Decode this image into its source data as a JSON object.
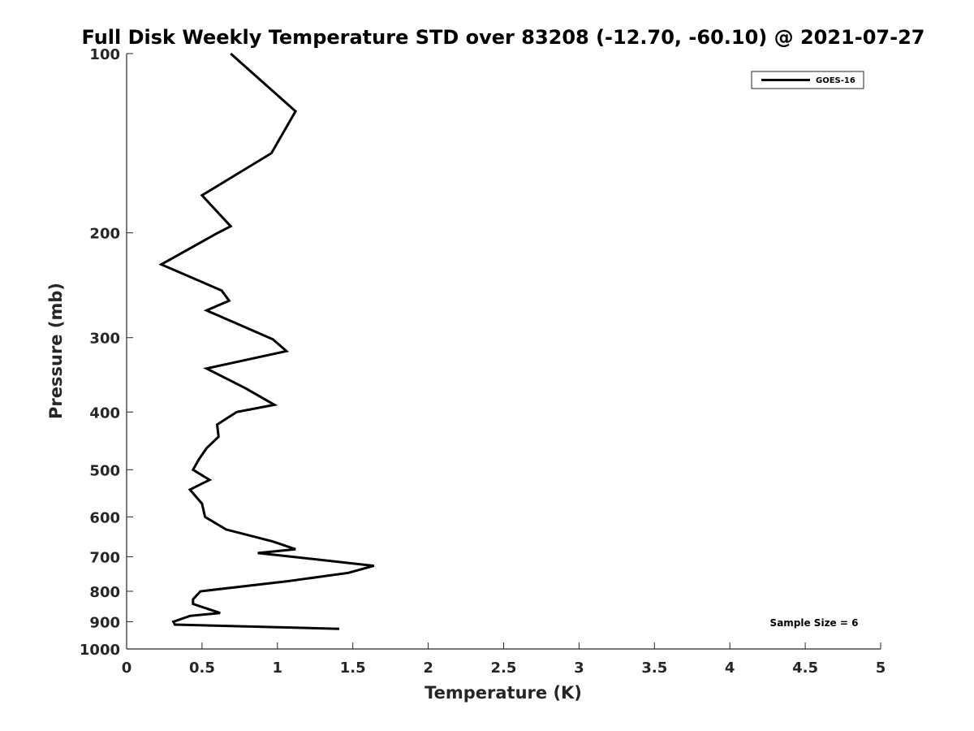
{
  "chart_data": {
    "type": "line",
    "title": "Full Disk Weekly Temperature STD over 83208 (-12.70, -60.10) @ 2021-07-27",
    "xlabel": "Temperature (K)",
    "ylabel": "Pressure (mb)",
    "xlim": [
      0,
      5
    ],
    "ylim": [
      100,
      1000
    ],
    "y_scale": "log",
    "y_reversed": true,
    "x_ticks": [
      "0",
      "0.5",
      "1",
      "1.5",
      "2",
      "2.5",
      "3",
      "3.5",
      "4",
      "4.5",
      "5"
    ],
    "y_ticks": [
      "100",
      "200",
      "300",
      "400",
      "500",
      "600",
      "700",
      "800",
      "900",
      "1000"
    ],
    "grid": false,
    "legend_position": "top-right",
    "annotation": "Sample Size = 6",
    "series": [
      {
        "name": "GOES-16",
        "color": "#000000",
        "x": [
          0.69,
          1.12,
          0.96,
          0.5,
          0.69,
          0.59,
          0.23,
          0.63,
          0.68,
          0.53,
          0.97,
          1.06,
          0.53,
          0.79,
          0.98,
          0.73,
          0.6,
          0.61,
          0.53,
          0.48,
          0.44,
          0.55,
          0.42,
          0.5,
          0.52,
          0.66,
          0.97,
          1.12,
          0.87,
          1.1,
          1.64,
          1.47,
          1.06,
          0.49,
          0.44,
          0.44,
          0.5,
          0.62,
          0.42,
          0.31,
          0.32,
          1.41
        ],
        "y": [
          100,
          125,
          147,
          173,
          195,
          201,
          226,
          250,
          260,
          270,
          302,
          316,
          338,
          365,
          389,
          400,
          420,
          440,
          460,
          480,
          500,
          520,
          540,
          570,
          600,
          630,
          660,
          680,
          690,
          700,
          725,
          745,
          770,
          800,
          825,
          840,
          850,
          870,
          880,
          900,
          910,
          925
        ]
      }
    ]
  }
}
